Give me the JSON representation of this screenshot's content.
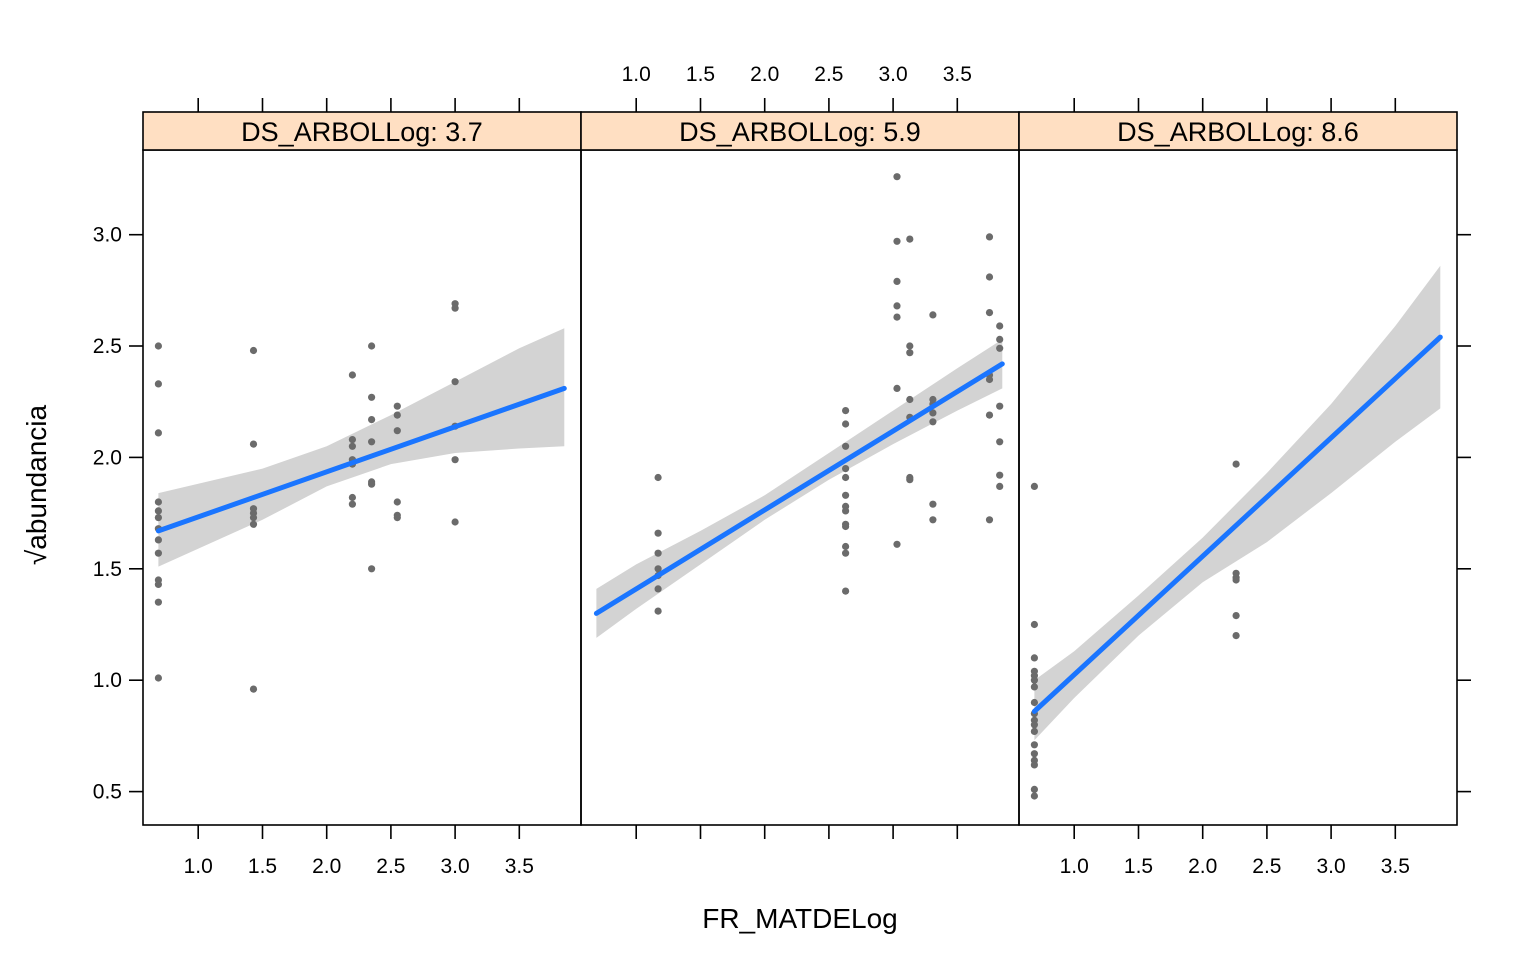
{
  "chart_data": {
    "type": "scatter",
    "xlabel": "FR_MATDELog",
    "ylabel": "abundancia",
    "ylabel_prefix": "√",
    "x_ticks": [
      "1.0",
      "1.5",
      "2.0",
      "2.5",
      "3.0",
      "3.5"
    ],
    "y_ticks": [
      "0.5",
      "1.0",
      "1.5",
      "2.0",
      "2.5",
      "3.0"
    ],
    "x_tick_values": [
      1.0,
      1.5,
      2.0,
      2.5,
      3.0,
      3.5
    ],
    "y_tick_values": [
      0.5,
      1.0,
      1.5,
      2.0,
      2.5,
      3.0
    ],
    "xlim": [
      0.57,
      3.98
    ],
    "ylim": [
      0.35,
      3.38
    ],
    "grid": false,
    "colors": {
      "points": "#6b6b6b",
      "fit_line": "#1a75ff",
      "confidence_band": "#d3d3d3",
      "strip": "#ffdfc2"
    },
    "panels": [
      {
        "strip_label": "DS_ARBOLLog: 3.7",
        "points": [
          {
            "x": 0.69,
            "y": 2.5
          },
          {
            "x": 0.69,
            "y": 2.33
          },
          {
            "x": 0.69,
            "y": 2.11
          },
          {
            "x": 0.69,
            "y": 1.8
          },
          {
            "x": 0.69,
            "y": 1.76
          },
          {
            "x": 0.69,
            "y": 1.73
          },
          {
            "x": 0.69,
            "y": 1.68
          },
          {
            "x": 0.69,
            "y": 1.63
          },
          {
            "x": 0.69,
            "y": 1.57
          },
          {
            "x": 0.69,
            "y": 1.45
          },
          {
            "x": 0.69,
            "y": 1.43
          },
          {
            "x": 0.69,
            "y": 1.35
          },
          {
            "x": 0.69,
            "y": 1.01
          },
          {
            "x": 1.43,
            "y": 2.48
          },
          {
            "x": 1.43,
            "y": 2.06
          },
          {
            "x": 1.43,
            "y": 1.77
          },
          {
            "x": 1.43,
            "y": 1.75
          },
          {
            "x": 1.43,
            "y": 1.73
          },
          {
            "x": 1.43,
            "y": 1.7
          },
          {
            "x": 1.43,
            "y": 0.96
          },
          {
            "x": 2.2,
            "y": 2.37
          },
          {
            "x": 2.2,
            "y": 2.08
          },
          {
            "x": 2.2,
            "y": 2.05
          },
          {
            "x": 2.2,
            "y": 1.99
          },
          {
            "x": 2.2,
            "y": 1.97
          },
          {
            "x": 2.2,
            "y": 1.82
          },
          {
            "x": 2.2,
            "y": 1.79
          },
          {
            "x": 2.35,
            "y": 2.5
          },
          {
            "x": 2.35,
            "y": 2.27
          },
          {
            "x": 2.35,
            "y": 2.17
          },
          {
            "x": 2.35,
            "y": 2.07
          },
          {
            "x": 2.35,
            "y": 1.89
          },
          {
            "x": 2.35,
            "y": 1.88
          },
          {
            "x": 2.35,
            "y": 1.5
          },
          {
            "x": 2.55,
            "y": 2.23
          },
          {
            "x": 2.55,
            "y": 2.19
          },
          {
            "x": 2.55,
            "y": 2.12
          },
          {
            "x": 2.55,
            "y": 1.8
          },
          {
            "x": 2.55,
            "y": 1.74
          },
          {
            "x": 2.55,
            "y": 1.73
          },
          {
            "x": 3.0,
            "y": 2.69
          },
          {
            "x": 3.0,
            "y": 2.67
          },
          {
            "x": 3.0,
            "y": 2.34
          },
          {
            "x": 3.0,
            "y": 2.14
          },
          {
            "x": 3.0,
            "y": 1.99
          },
          {
            "x": 3.0,
            "y": 1.71
          }
        ],
        "fit": {
          "x": [
            0.69,
            3.85
          ],
          "y": [
            1.67,
            2.31
          ]
        },
        "band": {
          "x": [
            0.69,
            1.5,
            2.0,
            2.5,
            3.0,
            3.5,
            3.85
          ],
          "lower": [
            1.51,
            1.72,
            1.87,
            1.97,
            2.02,
            2.04,
            2.05
          ],
          "upper": [
            1.84,
            1.95,
            2.05,
            2.19,
            2.34,
            2.49,
            2.58
          ]
        }
      },
      {
        "strip_label": "DS_ARBOLLog: 5.9",
        "points": [
          {
            "x": 1.17,
            "y": 1.91
          },
          {
            "x": 1.17,
            "y": 1.66
          },
          {
            "x": 1.17,
            "y": 1.57
          },
          {
            "x": 1.17,
            "y": 1.5
          },
          {
            "x": 1.17,
            "y": 1.47
          },
          {
            "x": 1.17,
            "y": 1.41
          },
          {
            "x": 1.17,
            "y": 1.31
          },
          {
            "x": 2.63,
            "y": 2.21
          },
          {
            "x": 2.63,
            "y": 2.15
          },
          {
            "x": 2.63,
            "y": 2.05
          },
          {
            "x": 2.63,
            "y": 1.95
          },
          {
            "x": 2.63,
            "y": 1.91
          },
          {
            "x": 2.63,
            "y": 1.83
          },
          {
            "x": 2.63,
            "y": 1.78
          },
          {
            "x": 2.63,
            "y": 1.76
          },
          {
            "x": 2.63,
            "y": 1.7
          },
          {
            "x": 2.63,
            "y": 1.69
          },
          {
            "x": 2.63,
            "y": 1.6
          },
          {
            "x": 2.63,
            "y": 1.57
          },
          {
            "x": 2.63,
            "y": 1.4
          },
          {
            "x": 3.03,
            "y": 3.26
          },
          {
            "x": 3.03,
            "y": 2.97
          },
          {
            "x": 3.03,
            "y": 2.79
          },
          {
            "x": 3.03,
            "y": 2.68
          },
          {
            "x": 3.03,
            "y": 2.63
          },
          {
            "x": 3.03,
            "y": 2.31
          },
          {
            "x": 3.03,
            "y": 1.61
          },
          {
            "x": 3.13,
            "y": 2.98
          },
          {
            "x": 3.13,
            "y": 2.5
          },
          {
            "x": 3.13,
            "y": 2.47
          },
          {
            "x": 3.13,
            "y": 2.26
          },
          {
            "x": 3.13,
            "y": 2.18
          },
          {
            "x": 3.13,
            "y": 1.91
          },
          {
            "x": 3.13,
            "y": 1.9
          },
          {
            "x": 3.31,
            "y": 2.64
          },
          {
            "x": 3.31,
            "y": 2.26
          },
          {
            "x": 3.31,
            "y": 2.24
          },
          {
            "x": 3.31,
            "y": 2.2
          },
          {
            "x": 3.31,
            "y": 2.16
          },
          {
            "x": 3.31,
            "y": 1.79
          },
          {
            "x": 3.31,
            "y": 1.72
          },
          {
            "x": 3.75,
            "y": 2.99
          },
          {
            "x": 3.75,
            "y": 2.81
          },
          {
            "x": 3.75,
            "y": 2.65
          },
          {
            "x": 3.75,
            "y": 2.37
          },
          {
            "x": 3.75,
            "y": 2.35
          },
          {
            "x": 3.75,
            "y": 2.19
          },
          {
            "x": 3.75,
            "y": 1.72
          },
          {
            "x": 3.83,
            "y": 2.59
          },
          {
            "x": 3.83,
            "y": 2.53
          },
          {
            "x": 3.83,
            "y": 2.49
          },
          {
            "x": 3.83,
            "y": 2.23
          },
          {
            "x": 3.83,
            "y": 2.07
          },
          {
            "x": 3.83,
            "y": 1.92
          },
          {
            "x": 3.83,
            "y": 1.87
          }
        ],
        "fit": {
          "x": [
            0.69,
            3.85
          ],
          "y": [
            1.3,
            2.42
          ]
        },
        "band": {
          "x": [
            0.69,
            1.0,
            1.5,
            2.0,
            2.5,
            3.0,
            3.5,
            3.85
          ],
          "lower": [
            1.19,
            1.32,
            1.52,
            1.72,
            1.9,
            2.06,
            2.21,
            2.31
          ],
          "upper": [
            1.41,
            1.52,
            1.67,
            1.83,
            2.02,
            2.21,
            2.4,
            2.53
          ]
        }
      },
      {
        "strip_label": "DS_ARBOLLog: 8.6",
        "points": [
          {
            "x": 0.69,
            "y": 1.87
          },
          {
            "x": 0.69,
            "y": 1.25
          },
          {
            "x": 0.69,
            "y": 1.1
          },
          {
            "x": 0.69,
            "y": 1.04
          },
          {
            "x": 0.69,
            "y": 1.02
          },
          {
            "x": 0.69,
            "y": 1.0
          },
          {
            "x": 0.69,
            "y": 0.97
          },
          {
            "x": 0.69,
            "y": 0.9
          },
          {
            "x": 0.69,
            "y": 0.85
          },
          {
            "x": 0.69,
            "y": 0.82
          },
          {
            "x": 0.69,
            "y": 0.8
          },
          {
            "x": 0.69,
            "y": 0.77
          },
          {
            "x": 0.69,
            "y": 0.71
          },
          {
            "x": 0.69,
            "y": 0.67
          },
          {
            "x": 0.69,
            "y": 0.64
          },
          {
            "x": 0.69,
            "y": 0.62
          },
          {
            "x": 0.69,
            "y": 0.51
          },
          {
            "x": 0.69,
            "y": 0.48
          },
          {
            "x": 2.26,
            "y": 1.97
          },
          {
            "x": 2.26,
            "y": 1.48
          },
          {
            "x": 2.26,
            "y": 1.46
          },
          {
            "x": 2.26,
            "y": 1.45
          },
          {
            "x": 2.26,
            "y": 1.29
          },
          {
            "x": 2.26,
            "y": 1.2
          }
        ],
        "fit": {
          "x": [
            0.69,
            3.85
          ],
          "y": [
            0.86,
            2.54
          ]
        },
        "band": {
          "x": [
            0.69,
            1.0,
            1.5,
            2.0,
            2.5,
            3.0,
            3.5,
            3.85
          ],
          "lower": [
            0.73,
            0.92,
            1.2,
            1.44,
            1.62,
            1.84,
            2.07,
            2.22
          ],
          "upper": [
            1.0,
            1.13,
            1.38,
            1.64,
            1.93,
            2.24,
            2.59,
            2.86
          ]
        }
      }
    ]
  }
}
